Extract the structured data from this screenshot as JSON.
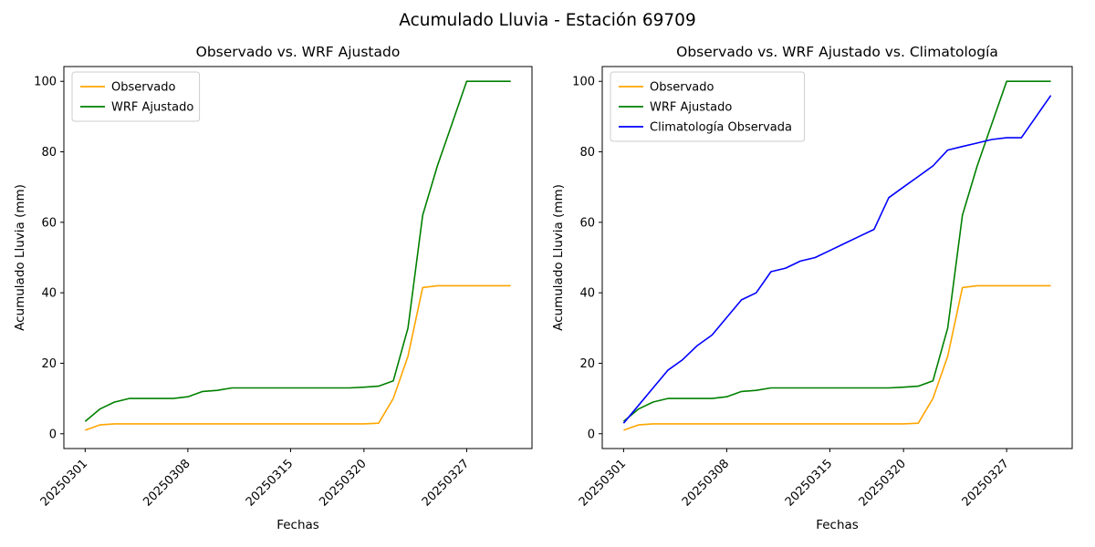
{
  "figure": {
    "suptitle": "Acumulado Lluvia - Estación 69709",
    "background": "#ffffff"
  },
  "chart_data": [
    {
      "type": "line",
      "title": "Observado vs. WRF Ajustado",
      "xlabel": "Fechas",
      "ylabel": "Acumulado Lluvia (mm)",
      "legend_position": "upper left",
      "grid": false,
      "ylim": [
        0,
        100
      ],
      "yticks": [
        0,
        20,
        40,
        60,
        80,
        100
      ],
      "xticks": [
        "20250301",
        "20250308",
        "20250315",
        "20250320",
        "20250327"
      ],
      "x": [
        "20250301",
        "20250302",
        "20250303",
        "20250304",
        "20250305",
        "20250306",
        "20250307",
        "20250308",
        "20250309",
        "20250310",
        "20250311",
        "20250312",
        "20250313",
        "20250314",
        "20250315",
        "20250316",
        "20250317",
        "20250318",
        "20250319",
        "20250320",
        "20250321",
        "20250322",
        "20250323",
        "20250324",
        "20250325",
        "20250326",
        "20250327",
        "20250328",
        "20250329",
        "20250330"
      ],
      "series": [
        {
          "name": "Observado",
          "color": "#ffa500",
          "values": [
            1,
            2.5,
            2.8,
            2.8,
            2.8,
            2.8,
            2.8,
            2.8,
            2.8,
            2.8,
            2.8,
            2.8,
            2.8,
            2.8,
            2.8,
            2.8,
            2.8,
            2.8,
            2.8,
            2.8,
            3,
            10,
            22,
            41.5,
            42,
            42,
            42,
            42,
            42,
            42
          ]
        },
        {
          "name": "WRF Ajustado",
          "color": "#008000",
          "values": [
            3.5,
            7,
            9,
            10,
            10,
            10,
            10,
            10.5,
            12,
            12.3,
            13,
            13,
            13,
            13,
            13,
            13,
            13,
            13,
            13,
            13.2,
            13.5,
            15,
            30,
            62,
            76,
            88,
            100,
            100,
            100,
            100
          ]
        }
      ]
    },
    {
      "type": "line",
      "title": "Observado vs. WRF Ajustado vs. Climatología",
      "xlabel": "Fechas",
      "ylabel": "Acumulado Lluvia (mm)",
      "legend_position": "upper left",
      "grid": false,
      "ylim": [
        0,
        100
      ],
      "yticks": [
        0,
        20,
        40,
        60,
        80,
        100
      ],
      "xticks": [
        "20250301",
        "20250308",
        "20250315",
        "20250320",
        "20250327"
      ],
      "x": [
        "20250301",
        "20250302",
        "20250303",
        "20250304",
        "20250305",
        "20250306",
        "20250307",
        "20250308",
        "20250309",
        "20250310",
        "20250311",
        "20250312",
        "20250313",
        "20250314",
        "20250315",
        "20250316",
        "20250317",
        "20250318",
        "20250319",
        "20250320",
        "20250321",
        "20250322",
        "20250323",
        "20250324",
        "20250325",
        "20250326",
        "20250327",
        "20250328",
        "20250329",
        "20250330"
      ],
      "series": [
        {
          "name": "Observado",
          "color": "#ffa500",
          "values": [
            1,
            2.5,
            2.8,
            2.8,
            2.8,
            2.8,
            2.8,
            2.8,
            2.8,
            2.8,
            2.8,
            2.8,
            2.8,
            2.8,
            2.8,
            2.8,
            2.8,
            2.8,
            2.8,
            2.8,
            3,
            10,
            22,
            41.5,
            42,
            42,
            42,
            42,
            42,
            42
          ]
        },
        {
          "name": "WRF Ajustado",
          "color": "#008000",
          "values": [
            3.5,
            7,
            9,
            10,
            10,
            10,
            10,
            10.5,
            12,
            12.3,
            13,
            13,
            13,
            13,
            13,
            13,
            13,
            13,
            13,
            13.2,
            13.5,
            15,
            30,
            62,
            76,
            88,
            100,
            100,
            100,
            100
          ]
        },
        {
          "name": "Climatología Observada",
          "color": "#0000ff",
          "values": [
            3,
            8,
            13,
            18,
            21,
            25,
            28,
            33,
            38,
            40,
            46,
            47,
            49,
            50,
            52,
            54,
            56,
            58,
            67,
            70,
            73,
            76,
            80.5,
            81.5,
            82.5,
            83.5,
            84,
            84,
            90,
            96
          ]
        }
      ]
    }
  ]
}
